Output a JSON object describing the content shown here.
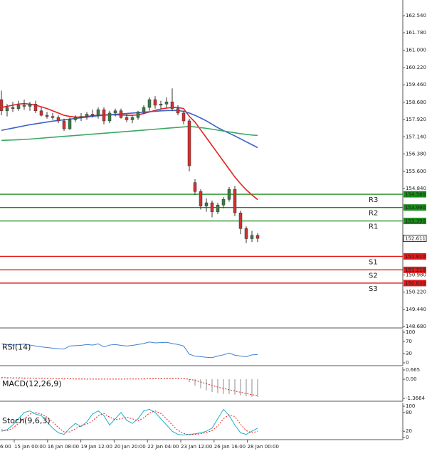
{
  "chart_data": [
    {
      "type": "candlestick",
      "open": [
        158.8,
        158.3,
        158.45,
        158.4,
        158.55,
        158.5,
        158.6,
        158.3,
        158.1,
        158.05,
        158.0,
        157.85,
        157.5,
        157.9,
        158.0,
        158.05,
        158.15,
        158.1,
        158.35,
        157.85,
        158.2,
        158.3,
        158.0,
        157.9,
        158.0,
        158.25,
        158.45,
        158.8,
        158.55,
        158.6,
        158.7,
        158.4,
        158.2,
        157.85,
        155.1,
        154.7,
        154.05,
        154.2,
        153.8,
        154.1,
        154.35,
        154.8,
        153.75,
        153.05,
        152.6,
        152.75
      ],
      "high": [
        159.2,
        158.6,
        158.7,
        158.75,
        158.8,
        158.7,
        158.75,
        158.45,
        158.25,
        158.2,
        158.1,
        157.95,
        158.0,
        158.1,
        158.2,
        158.25,
        158.35,
        158.45,
        158.45,
        158.3,
        158.4,
        158.4,
        158.15,
        158.1,
        158.3,
        158.55,
        158.9,
        158.95,
        158.75,
        158.9,
        159.3,
        158.55,
        158.3,
        157.95,
        155.25,
        154.8,
        154.4,
        154.3,
        154.2,
        154.45,
        154.9,
        154.95,
        153.85,
        153.15,
        152.95,
        152.85
      ],
      "low": [
        158.1,
        158.05,
        158.25,
        158.3,
        158.35,
        158.3,
        158.2,
        158.05,
        157.95,
        157.9,
        157.75,
        157.4,
        157.45,
        157.8,
        157.85,
        157.9,
        158.0,
        157.95,
        157.7,
        157.75,
        158.05,
        157.95,
        157.8,
        157.75,
        157.9,
        158.15,
        158.3,
        158.4,
        158.35,
        158.45,
        158.3,
        158.1,
        157.7,
        155.6,
        154.55,
        153.9,
        153.8,
        153.55,
        153.7,
        153.95,
        154.25,
        153.6,
        152.8,
        152.4,
        152.45,
        152.45
      ],
      "close": [
        158.3,
        158.45,
        158.4,
        158.55,
        158.5,
        158.6,
        158.3,
        158.1,
        158.05,
        158.0,
        157.85,
        157.5,
        157.9,
        158.0,
        158.05,
        158.15,
        158.1,
        158.35,
        157.85,
        158.2,
        158.3,
        158.0,
        157.9,
        158.0,
        158.25,
        158.45,
        158.8,
        158.55,
        158.6,
        158.7,
        158.4,
        158.2,
        157.85,
        155.85,
        154.7,
        154.05,
        154.2,
        153.8,
        154.1,
        154.35,
        154.8,
        153.75,
        153.05,
        152.6,
        152.75,
        152.611
      ],
      "up_color": "#3a7d44",
      "down_color": "#d32f2f",
      "series": [
        {
          "color": "#e8201e",
          "values": [
            158.45,
            158.5,
            158.55,
            158.6,
            158.62,
            158.6,
            158.55,
            158.48,
            158.4,
            158.3,
            158.2,
            158.1,
            158.05,
            158.02,
            158.02,
            158.05,
            158.08,
            158.1,
            158.12,
            158.12,
            158.12,
            158.12,
            158.1,
            158.1,
            158.12,
            158.18,
            158.25,
            158.32,
            158.38,
            158.42,
            158.45,
            158.45,
            158.4,
            158.05,
            157.8,
            157.45,
            157.1,
            156.75,
            156.4,
            156.05,
            155.7,
            155.35,
            155.05,
            154.78,
            154.55,
            154.34
          ]
        },
        {
          "color": "#3a62c9",
          "values": [
            157.43,
            157.48,
            157.53,
            157.58,
            157.63,
            157.68,
            157.72,
            157.76,
            157.8,
            157.84,
            157.87,
            157.9,
            157.93,
            157.96,
            157.99,
            158.02,
            158.05,
            158.08,
            158.1,
            158.12,
            158.14,
            158.16,
            158.18,
            158.2,
            158.22,
            158.24,
            158.26,
            158.28,
            158.3,
            158.31,
            158.32,
            158.31,
            158.28,
            158.2,
            158.1,
            157.98,
            157.85,
            157.7,
            157.55,
            157.42,
            157.3,
            157.18,
            157.05,
            156.92,
            156.79,
            156.66
          ]
        },
        {
          "color": "#3aa864",
          "values": [
            156.98,
            156.99,
            157.0,
            157.01,
            157.02,
            157.04,
            157.06,
            157.08,
            157.1,
            157.12,
            157.14,
            157.16,
            157.18,
            157.2,
            157.22,
            157.24,
            157.26,
            157.28,
            157.3,
            157.32,
            157.34,
            157.36,
            157.38,
            157.4,
            157.42,
            157.44,
            157.46,
            157.48,
            157.5,
            157.52,
            157.54,
            157.56,
            157.58,
            157.6,
            157.58,
            157.55,
            157.52,
            157.48,
            157.44,
            157.4,
            157.36,
            157.32,
            157.28,
            157.25,
            157.22,
            157.2
          ]
        }
      ],
      "levels": [
        {
          "name": "R3",
          "value": 154.58,
          "label": "154.580",
          "color": "#1a8c1a"
        },
        {
          "name": "R2",
          "value": 153.99,
          "label": "153.990",
          "color": "#1a8c1a"
        },
        {
          "name": "R1",
          "value": 153.39,
          "label": "153.390",
          "color": "#1a8c1a"
        },
        {
          "name": "S1",
          "value": 151.81,
          "label": "151.810",
          "color": "#e01b1b"
        },
        {
          "name": "S2",
          "value": 151.21,
          "label": "151.210",
          "color": "#e01b1b"
        },
        {
          "name": "S3",
          "value": 150.62,
          "label": "150.620",
          "color": "#e01b1b"
        }
      ],
      "last": 152.611,
      "ylim": [
        148.62,
        163.24
      ],
      "yticks": [
        {
          "value": 162.54,
          "label": "162.540"
        },
        {
          "value": 161.78,
          "label": "161.780"
        },
        {
          "value": 161.0,
          "label": "161.000"
        },
        {
          "value": 160.22,
          "label": "160.220"
        },
        {
          "value": 159.46,
          "label": "159.460"
        },
        {
          "value": 158.68,
          "label": "158.680"
        },
        {
          "value": 157.92,
          "label": "157.920"
        },
        {
          "value": 157.14,
          "label": "157.140"
        },
        {
          "value": 156.38,
          "label": "156.380"
        },
        {
          "value": 155.6,
          "label": "155.600"
        },
        {
          "value": 154.84,
          "label": "154.840"
        },
        {
          "value": 150.98,
          "label": "150.980"
        },
        {
          "value": 150.22,
          "label": "150.220"
        },
        {
          "value": 149.44,
          "label": "149.440"
        },
        {
          "value": 148.68,
          "label": "148.680"
        }
      ]
    },
    {
      "type": "line",
      "title": "RSI(14)",
      "series": [
        {
          "color": "#3f7fd6",
          "values": [
            62,
            60,
            58,
            60,
            61,
            58,
            55,
            52,
            50,
            48,
            46,
            45,
            55,
            56,
            57,
            60,
            58,
            62,
            52,
            58,
            60,
            57,
            55,
            57,
            60,
            63,
            68,
            65,
            66,
            67,
            63,
            60,
            55,
            28,
            22,
            20,
            18,
            17,
            22,
            26,
            32,
            25,
            22,
            20,
            26,
            27
          ]
        }
      ],
      "ylim": [
        -9.3,
        109.3
      ],
      "yticks": [
        100,
        70,
        30,
        0
      ]
    },
    {
      "type": "macd",
      "title": "MACD(12,26,9)",
      "series": [
        {
          "color": "#9e9e9e",
          "values": [
            0.05,
            0.05,
            0.06,
            0.06,
            0.06,
            0.06,
            0.05,
            0.04,
            0.03,
            0.02,
            0.01,
            -0.01,
            -0.01,
            0.0,
            0.0,
            0.01,
            0.01,
            0.02,
            0.02,
            0.02,
            0.02,
            0.02,
            0.02,
            0.02,
            0.03,
            0.04,
            0.05,
            0.06,
            0.07,
            0.08,
            0.08,
            0.07,
            0.05,
            -0.2,
            -0.45,
            -0.65,
            -0.8,
            -0.92,
            -1.0,
            -1.04,
            -1.05,
            -1.1,
            -1.16,
            -1.22,
            -1.25,
            -1.26
          ]
        },
        {
          "color": "#e8201e",
          "dash": true,
          "values": [
            0.12,
            0.11,
            0.1,
            0.1,
            0.09,
            0.09,
            0.08,
            0.08,
            0.07,
            0.06,
            0.05,
            0.04,
            0.03,
            0.02,
            0.02,
            0.01,
            0.01,
            0.01,
            0.01,
            0.01,
            0.01,
            0.01,
            0.02,
            0.02,
            0.02,
            0.02,
            0.03,
            0.03,
            0.04,
            0.04,
            0.05,
            0.05,
            0.05,
            0.0,
            -0.08,
            -0.2,
            -0.32,
            -0.45,
            -0.56,
            -0.66,
            -0.75,
            -0.84,
            -0.93,
            -1.02,
            -1.1,
            -1.17
          ]
        }
      ],
      "ylim": [
        -1.57,
        0.868
      ],
      "yticks": [
        0.665,
        {
          "value": 0,
          "label": "0.00"
        },
        -1.3664
      ]
    },
    {
      "type": "line",
      "title": "Stoch(9,6,3)",
      "series": [
        {
          "color": "#1fb0c9",
          "values": [
            20,
            25,
            40,
            60,
            80,
            85,
            75,
            70,
            50,
            30,
            15,
            10,
            30,
            45,
            35,
            50,
            75,
            85,
            70,
            40,
            60,
            80,
            55,
            45,
            60,
            85,
            90,
            80,
            60,
            40,
            20,
            10,
            8,
            10,
            12,
            15,
            20,
            30,
            60,
            90,
            70,
            40,
            15,
            10,
            20,
            30
          ]
        },
        {
          "color": "#e8201e",
          "dash": true,
          "values": [
            25,
            22,
            30,
            45,
            60,
            75,
            80,
            75,
            65,
            50,
            32,
            18,
            18,
            28,
            38,
            43,
            53,
            70,
            77,
            65,
            57,
            60,
            65,
            60,
            53,
            63,
            78,
            85,
            77,
            60,
            40,
            23,
            13,
            9,
            10,
            12,
            16,
            22,
            37,
            60,
            73,
            67,
            42,
            22,
            15,
            20
          ]
        }
      ],
      "ylim": [
        -6.8,
        111.4
      ],
      "yticks": [
        100,
        80,
        20,
        0
      ]
    }
  ],
  "time_labels": [
    "6:00",
    "15 Jan 00:00",
    "16 Jan 08:00",
    "19 Jan 12:00",
    "20 Jan 20:00",
    "22 Jan 04:00",
    "23 Jan 12:00",
    "26 Jan 16:00",
    "28 Jan 00:00"
  ]
}
